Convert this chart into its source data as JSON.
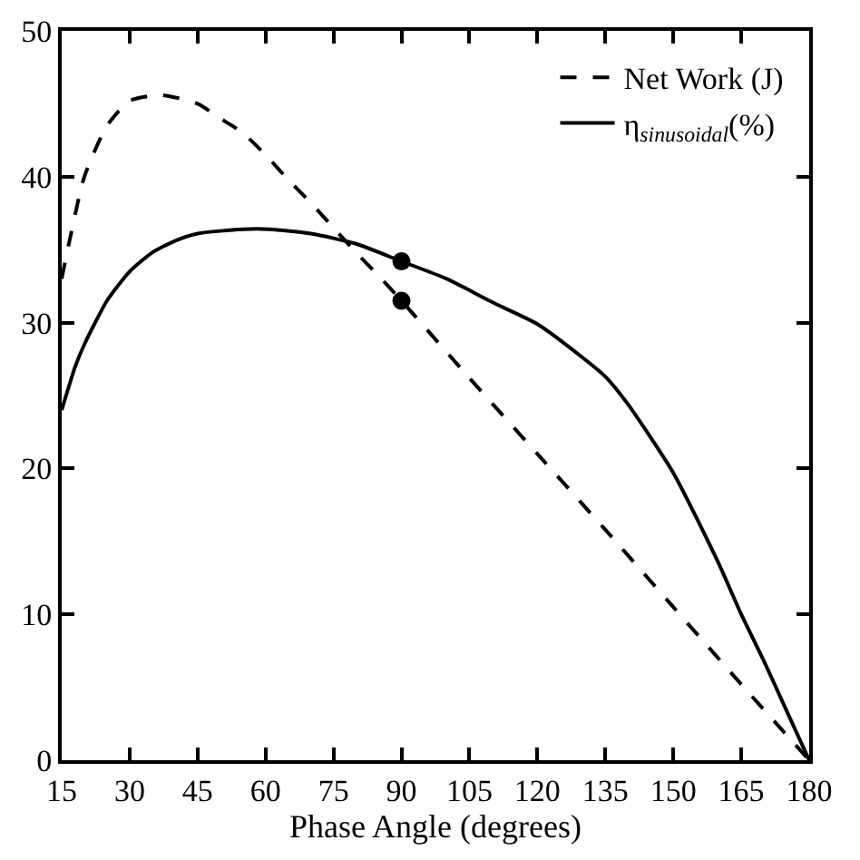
{
  "chart_data": {
    "type": "line",
    "xlabel": "Phase Angle (degrees)",
    "xlim": [
      15,
      180
    ],
    "xticks": [
      15,
      30,
      45,
      60,
      75,
      90,
      105,
      120,
      135,
      150,
      165,
      180
    ],
    "ylim": [
      0,
      50
    ],
    "yticks": [
      0,
      10,
      20,
      30,
      40,
      50
    ],
    "legend": "top right",
    "series": [
      {
        "name": "Net Work (J)",
        "color": "#000000",
        "line_style": "dashed",
        "marker": "none",
        "x": [
          15,
          17,
          20,
          25,
          30,
          37,
          45,
          50,
          55,
          60,
          65,
          70,
          75,
          80,
          85,
          90,
          105,
          120,
          135,
          150,
          165,
          180
        ],
        "values": [
          33,
          36,
          40,
          43.5,
          45.2,
          45.6,
          45,
          44,
          43,
          41.5,
          39.8,
          38.2,
          36.5,
          34.8,
          33.2,
          31.5,
          26.2,
          21,
          15.8,
          10.5,
          5.2,
          0
        ]
      },
      {
        "name": "η$_{sinusoidal}$(%)",
        "color": "#000000",
        "line_style": "solid",
        "marker": "none",
        "x": [
          15,
          18,
          20,
          25,
          30,
          35,
          40,
          45,
          55,
          61,
          70,
          80,
          90,
          100,
          110,
          120,
          130,
          135,
          140,
          150,
          160,
          165,
          170,
          175,
          180
        ],
        "values": [
          24,
          27,
          28.5,
          31.5,
          33.5,
          34.8,
          35.6,
          36.1,
          36.4,
          36.4,
          36.1,
          35.4,
          34.2,
          33,
          31.4,
          29.9,
          27.6,
          26.3,
          24.4,
          19.7,
          13.5,
          10,
          6.8,
          3.4,
          0
        ]
      },
      {
        "type": "scatter",
        "color": "#000000",
        "marker": "circle",
        "x": [
          90,
          90
        ],
        "values": [
          34.2,
          31.5
        ]
      }
    ]
  }
}
